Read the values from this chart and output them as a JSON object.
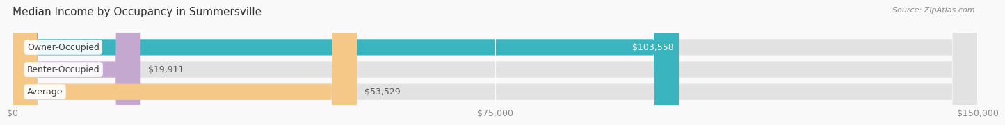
{
  "title": "Median Income by Occupancy in Summersville",
  "source": "Source: ZipAtlas.com",
  "categories": [
    "Owner-Occupied",
    "Renter-Occupied",
    "Average"
  ],
  "values": [
    103558,
    19911,
    53529
  ],
  "bar_colors": [
    "#3ab5bf",
    "#c5a8d0",
    "#f5c888"
  ],
  "value_labels": [
    "$103,558",
    "$19,911",
    "$53,529"
  ],
  "x_ticks": [
    0,
    75000,
    150000
  ],
  "x_tick_labels": [
    "$0",
    "$75,000",
    "$150,000"
  ],
  "xlim": [
    0,
    150000
  ],
  "track_color": "#e2e2e2",
  "title_fontsize": 11,
  "label_fontsize": 9,
  "value_fontsize": 9,
  "source_fontsize": 8,
  "bar_height": 0.72,
  "fig_width": 14.06,
  "fig_height": 1.97,
  "bg_color": "#f9f9f9"
}
